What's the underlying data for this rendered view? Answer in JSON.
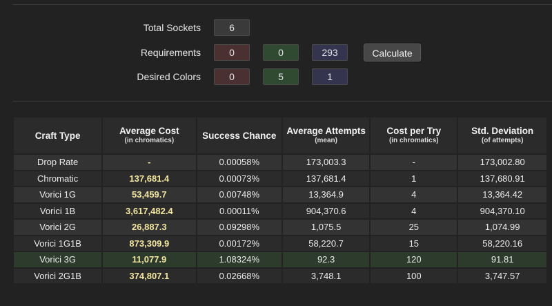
{
  "form": {
    "total_sockets": {
      "label": "Total Sockets",
      "value": "6"
    },
    "requirements": {
      "label": "Requirements",
      "red": "0",
      "green": "0",
      "blue": "293"
    },
    "desired_colors": {
      "label": "Desired Colors",
      "red": "0",
      "green": "5",
      "blue": "1"
    },
    "calculate_label": "Calculate"
  },
  "table": {
    "headers": [
      {
        "title": "Craft Type",
        "sub": ""
      },
      {
        "title": "Average Cost",
        "sub": "(in chromatics)"
      },
      {
        "title": "Success Chance",
        "sub": ""
      },
      {
        "title": "Average Attempts",
        "sub": "(mean)"
      },
      {
        "title": "Cost per Try",
        "sub": "(in chromatics)"
      },
      {
        "title": "Std. Deviation",
        "sub": "(of attempts)"
      }
    ],
    "rows": [
      {
        "type": "Drop Rate",
        "cost": "-",
        "chance": "0.00058%",
        "attempts": "173,003.3",
        "per_try": "-",
        "std": "173,002.80"
      },
      {
        "type": "Chromatic",
        "cost": "137,681.4",
        "chance": "0.00073%",
        "attempts": "137,681.4",
        "per_try": "1",
        "std": "137,680.91"
      },
      {
        "type": "Vorici 1G",
        "cost": "53,459.7",
        "chance": "0.00748%",
        "attempts": "13,364.9",
        "per_try": "4",
        "std": "13,364.42"
      },
      {
        "type": "Vorici 1B",
        "cost": "3,617,482.4",
        "chance": "0.00011%",
        "attempts": "904,370.6",
        "per_try": "4",
        "std": "904,370.10"
      },
      {
        "type": "Vorici 2G",
        "cost": "26,887.3",
        "chance": "0.09298%",
        "attempts": "1,075.5",
        "per_try": "25",
        "std": "1,074.99"
      },
      {
        "type": "Vorici 1G1B",
        "cost": "873,309.9",
        "chance": "0.00172%",
        "attempts": "58,220.7",
        "per_try": "15",
        "std": "58,220.16"
      },
      {
        "type": "Vorici 3G",
        "cost": "11,077.9",
        "chance": "1.08324%",
        "attempts": "92.3",
        "per_try": "120",
        "std": "91.81"
      },
      {
        "type": "Vorici 2G1B",
        "cost": "374,807.1",
        "chance": "0.02668%",
        "attempts": "3,748.1",
        "per_try": "100",
        "std": "3,747.57"
      }
    ]
  }
}
